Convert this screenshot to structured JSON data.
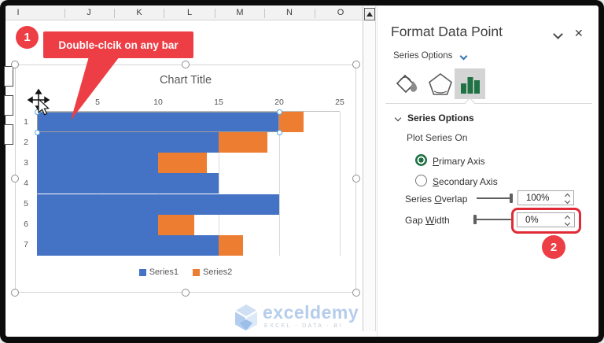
{
  "spreadsheet": {
    "column_headers": [
      "I",
      "J",
      "K",
      "L",
      "M",
      "N",
      "O"
    ]
  },
  "chart_data": {
    "type": "bar",
    "orientation": "horizontal",
    "title": "Chart Title",
    "categories": [
      "1",
      "2",
      "3",
      "4",
      "5",
      "6",
      "7"
    ],
    "x_ticks": [
      "5",
      "10",
      "15",
      "20",
      "25"
    ],
    "xlim": [
      0,
      25
    ],
    "grid": true,
    "legend_position": "bottom",
    "series": [
      {
        "name": "Series1",
        "color": "#4472C4",
        "extents": [
          [
            0,
            20
          ],
          [
            0,
            15
          ],
          [
            0,
            10
          ],
          [
            0,
            15
          ],
          [
            0,
            20
          ],
          [
            0,
            10
          ],
          [
            0,
            15
          ]
        ]
      },
      {
        "name": "Series2",
        "color": "#ED7D31",
        "extents": [
          [
            20,
            22
          ],
          [
            15,
            19
          ],
          [
            10,
            14
          ],
          null,
          null,
          [
            10,
            13
          ],
          [
            15,
            17
          ]
        ]
      }
    ],
    "selected_point": {
      "series": "Series1",
      "category": "1"
    },
    "series_overlap": "100%",
    "gap_width": "0%"
  },
  "annotations": {
    "step1": "1",
    "step2": "2",
    "callout": "Double-clcik on any bar"
  },
  "watermark": {
    "brand": "exceldemy",
    "tagline": "EXCEL - DATA - BI"
  },
  "panel": {
    "title": "Format Data Point",
    "dropdown_label": "Series Options",
    "tabs": [
      {
        "name": "fill-line"
      },
      {
        "name": "effects"
      },
      {
        "name": "series-options",
        "selected": true
      }
    ],
    "section_header": "Series Options",
    "plot_series_on": "Plot Series On",
    "primary_axis": {
      "key": "P",
      "rest": "rimary Axis",
      "selected": true
    },
    "secondary_axis": {
      "key": "S",
      "rest": "econdary Axis",
      "selected": false
    },
    "series_overlap": {
      "pre": "Series ",
      "key": "O",
      "rest": "verlap",
      "value": "100%"
    },
    "gap_width": {
      "pre": "Gap ",
      "key": "W",
      "rest": "idth",
      "value": "0%"
    }
  },
  "colors": {
    "bar_blue": "#4472C4",
    "bar_orange": "#ED7D31",
    "excel_green": "#1F7244",
    "accent_blue": "#2E74B5",
    "annotation_red": "#ED3E46",
    "highlight_red": "#E02B36"
  }
}
